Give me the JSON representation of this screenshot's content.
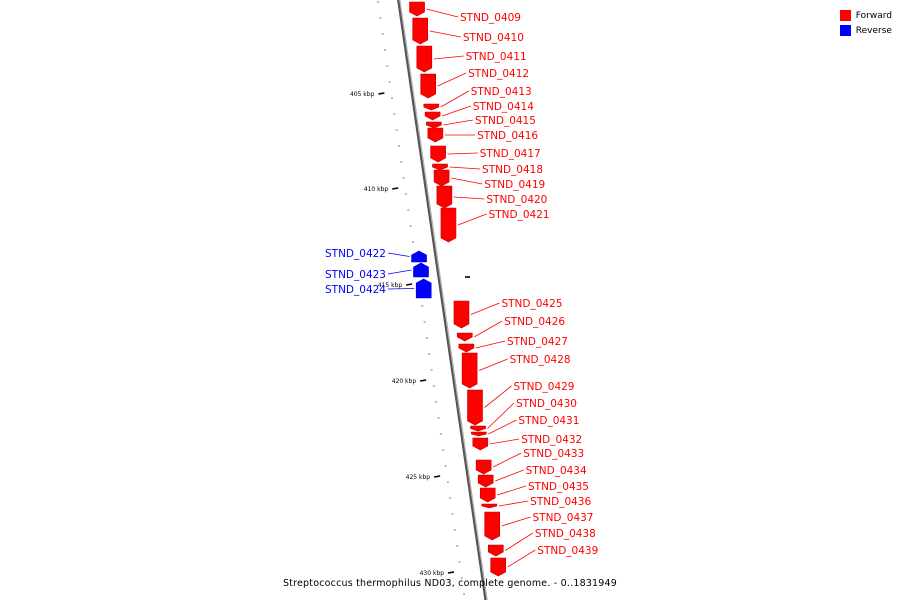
{
  "legend": {
    "items": [
      {
        "label": "Forward",
        "color": "#ff0000"
      },
      {
        "label": "Reverse",
        "color": "#0000ff"
      }
    ]
  },
  "caption": "Streptococcus thermophilus ND03, complete genome. - 0..1831949",
  "colors": {
    "forward": "#ff0000",
    "reverse": "#0000ff",
    "backbone": "#888888"
  },
  "ticks": [
    "405 kbp",
    "410 kbp",
    "415 kbp",
    "420 kbp",
    "425 kbp",
    "430 kbp"
  ],
  "genes": [
    {
      "name": "STND_0409",
      "strand": "forward"
    },
    {
      "name": "STND_0410",
      "strand": "forward"
    },
    {
      "name": "STND_0411",
      "strand": "forward"
    },
    {
      "name": "STND_0412",
      "strand": "forward"
    },
    {
      "name": "STND_0413",
      "strand": "forward"
    },
    {
      "name": "STND_0414",
      "strand": "forward"
    },
    {
      "name": "STND_0415",
      "strand": "forward"
    },
    {
      "name": "STND_0416",
      "strand": "forward"
    },
    {
      "name": "STND_0417",
      "strand": "forward"
    },
    {
      "name": "STND_0418",
      "strand": "forward"
    },
    {
      "name": "STND_0419",
      "strand": "forward"
    },
    {
      "name": "STND_0420",
      "strand": "forward"
    },
    {
      "name": "STND_0421",
      "strand": "forward"
    },
    {
      "name": "STND_0422",
      "strand": "reverse"
    },
    {
      "name": "STND_0423",
      "strand": "reverse"
    },
    {
      "name": "STND_0424",
      "strand": "reverse"
    },
    {
      "name": "STND_0425",
      "strand": "forward"
    },
    {
      "name": "STND_0426",
      "strand": "forward"
    },
    {
      "name": "STND_0427",
      "strand": "forward"
    },
    {
      "name": "STND_0428",
      "strand": "forward"
    },
    {
      "name": "STND_0429",
      "strand": "forward"
    },
    {
      "name": "STND_0430",
      "strand": "forward"
    },
    {
      "name": "STND_0431",
      "strand": "forward"
    },
    {
      "name": "STND_0432",
      "strand": "forward"
    },
    {
      "name": "STND_0433",
      "strand": "forward"
    },
    {
      "name": "STND_0434",
      "strand": "forward"
    },
    {
      "name": "STND_0435",
      "strand": "forward"
    },
    {
      "name": "STND_0436",
      "strand": "forward"
    },
    {
      "name": "STND_0437",
      "strand": "forward"
    },
    {
      "name": "STND_0438",
      "strand": "forward"
    },
    {
      "name": "STND_0439",
      "strand": "forward"
    }
  ]
}
